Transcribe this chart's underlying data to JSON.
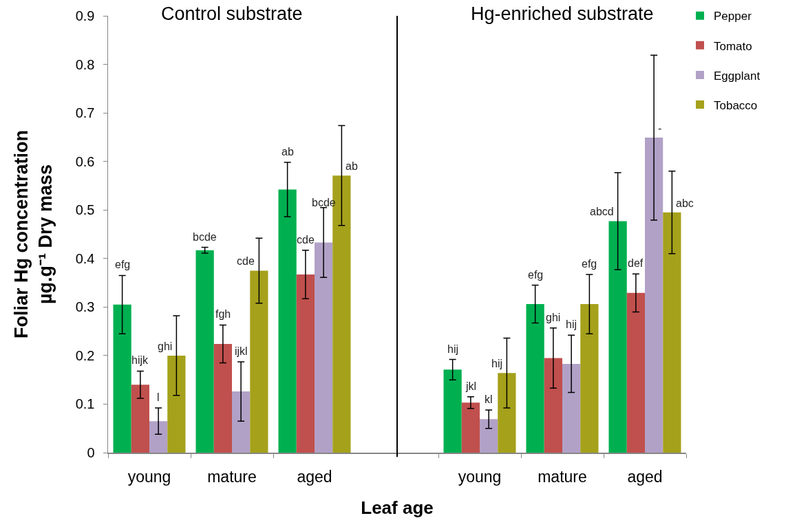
{
  "chart_data": {
    "type": "bar",
    "xlabel": "Leaf age",
    "ylabel": "Foliar Hg concentration\nµg.g⁻¹ Dry mass",
    "annotations": [
      "Control substrate",
      "Hg-enriched substrate"
    ],
    "categories": [
      "young",
      "mature",
      "aged",
      null,
      "young",
      "mature",
      "aged"
    ],
    "series": [
      {
        "name": "Pepper",
        "color": "#00b050",
        "values": [
          0.305,
          0.417,
          0.542,
          null,
          0.171,
          0.306,
          0.477
        ],
        "errors": [
          0.06,
          0.006,
          0.056,
          null,
          0.021,
          0.039,
          0.1
        ],
        "value_labels": [
          "efg",
          "bcde",
          "ab",
          null,
          "hij",
          "efg",
          "abcd"
        ]
      },
      {
        "name": "Tomato",
        "color": "#c0504d",
        "values": [
          0.14,
          0.224,
          0.367,
          null,
          0.103,
          0.195,
          0.329
        ],
        "errors": [
          0.028,
          0.039,
          0.05,
          null,
          0.012,
          0.062,
          0.039
        ],
        "value_labels": [
          "hijk",
          "fgh",
          "cde",
          null,
          "jkl",
          "ghi",
          "def"
        ]
      },
      {
        "name": "Eggplant",
        "color": "#b2a1c7",
        "values": [
          0.065,
          0.126,
          0.433,
          null,
          0.069,
          0.183,
          0.649
        ],
        "errors": [
          0.027,
          0.061,
          0.072,
          null,
          0.019,
          0.059,
          0.17
        ],
        "value_labels": [
          "l",
          "ijkl",
          "bcde",
          null,
          "kl",
          "hij",
          "-"
        ]
      },
      {
        "name": "Tobacco",
        "color": "#a5a11b",
        "values": [
          0.2,
          0.375,
          0.571,
          null,
          0.164,
          0.306,
          0.495
        ],
        "errors": [
          0.082,
          0.067,
          0.103,
          null,
          0.072,
          0.061,
          0.085
        ],
        "value_labels": [
          "ghi",
          "cde",
          "ab",
          null,
          "hij",
          "efg",
          "abc"
        ]
      }
    ],
    "ylim": [
      0,
      0.9
    ],
    "yticks": [
      0,
      0.1,
      0.2,
      0.3,
      0.4,
      0.5,
      0.6,
      0.7,
      0.8,
      0.9
    ],
    "legend": "top right"
  }
}
